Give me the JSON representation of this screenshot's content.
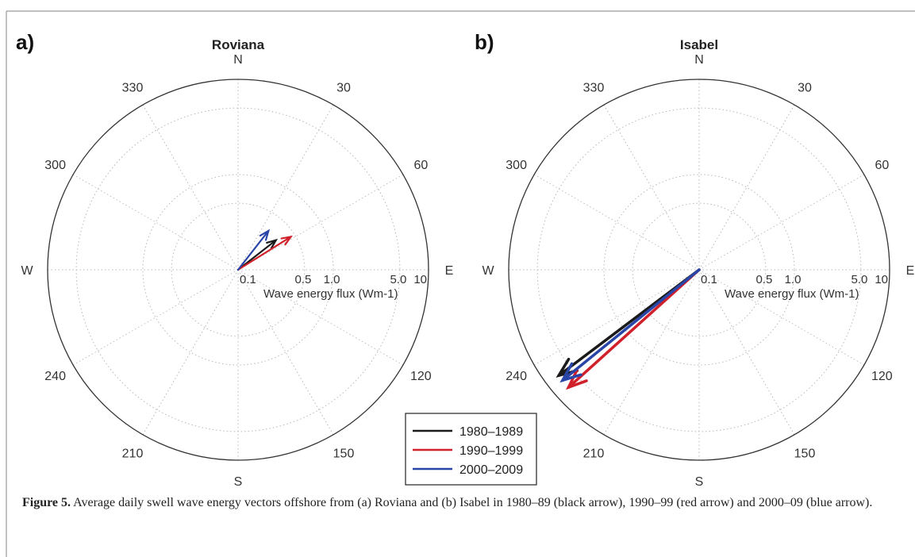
{
  "caption": {
    "label": "Figure 5.",
    "text": " Average daily swell wave energy vectors offshore from (a) Roviana and (b) Isabel in 1980–89 (black arrow), 1990–99 (red arrow) and 2000–09 (blue arrow)."
  },
  "chart_data": [
    {
      "type": "polar",
      "panel": "a)",
      "title": "Roviana",
      "radial_axis_label": "Wave energy flux (Wm-1)",
      "radial_scale": "log",
      "radial_range": [
        0.1,
        10
      ],
      "radial_ticks": [
        "0.1",
        "0.5",
        "1.0",
        "5.0",
        "10"
      ],
      "angular_labels": [
        "N",
        "30",
        "60",
        "E",
        "120",
        "150",
        "S",
        "210",
        "240",
        "W",
        "300",
        "330"
      ],
      "grid": true,
      "series": [
        {
          "name": "1980–1989",
          "color": "#1a1a1a",
          "direction_deg": 52,
          "magnitude": 0.32
        },
        {
          "name": "1990–1999",
          "color": "#d0202a",
          "direction_deg": 58,
          "magnitude": 0.45
        },
        {
          "name": "2000–2009",
          "color": "#2a45a8",
          "direction_deg": 38,
          "magnitude": 0.33
        }
      ]
    },
    {
      "type": "polar",
      "panel": "b)",
      "title": "Isabel",
      "radial_axis_label": "Wave energy flux (Wm-1)",
      "radial_scale": "log",
      "radial_range": [
        0.1,
        10
      ],
      "radial_ticks": [
        "0.1",
        "0.5",
        "1.0",
        "5.0",
        "10"
      ],
      "angular_labels": [
        "N",
        "30",
        "60",
        "E",
        "120",
        "150",
        "S",
        "210",
        "240",
        "W",
        "300",
        "330"
      ],
      "grid": true,
      "series": [
        {
          "name": "1980–1989",
          "color": "#1a1a1a",
          "direction_deg": 233,
          "magnitude": 7.0
        },
        {
          "name": "1990–1999",
          "color": "#d0202a",
          "direction_deg": 228,
          "magnitude": 7.0
        },
        {
          "name": "2000–2009",
          "color": "#2a45a8",
          "direction_deg": 231,
          "magnitude": 7.0
        }
      ]
    }
  ],
  "legend": {
    "placement": "bottom-center",
    "entries": [
      {
        "label": "1980–1989",
        "color": "#1a1a1a"
      },
      {
        "label": "1990–1999",
        "color": "#d0202a"
      },
      {
        "label": "2000–2009",
        "color": "#2a45a8"
      }
    ]
  }
}
